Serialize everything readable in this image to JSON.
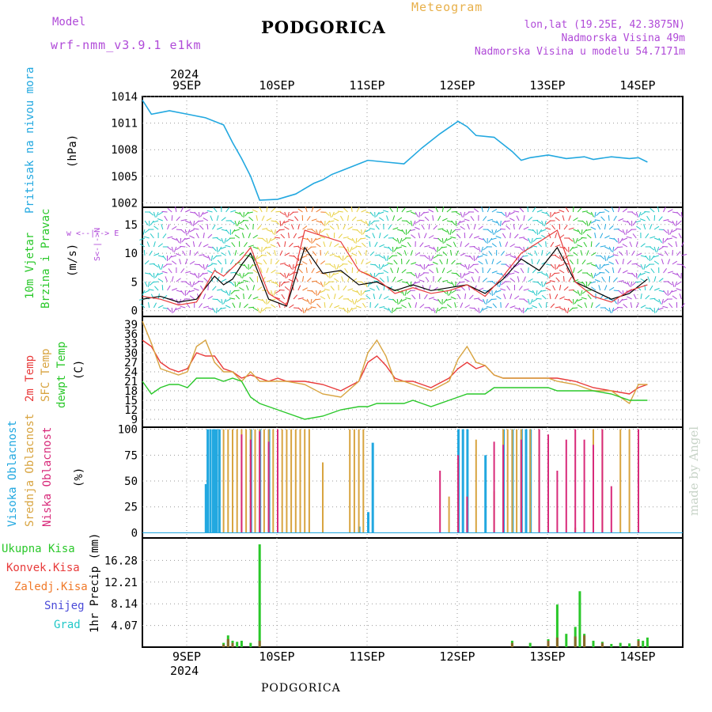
{
  "header": {
    "model_label": "Model",
    "model_name": "wrf-nmm_v3.9.1 e1km",
    "title": "PODGORICA",
    "meteogram": "Meteogram",
    "coords": "lon,lat (19.25E, 42.3875N)",
    "altitude": "Nadmorska Visina 49m",
    "model_altitude": "Nadmorska Visina u modelu 54.7171m"
  },
  "footer": {
    "station": "PODGORICA",
    "credit": "made by Angel"
  },
  "colors": {
    "pressure": "#22a8e0",
    "wind_speed": "#000000",
    "temp2m": "#e83a3a",
    "sfc_temp": "#d8a440",
    "dewpoint": "#2ac82a",
    "high_cloud": "#22a8e0",
    "mid_cloud": "#d8a440",
    "low_cloud": "#d82a7a",
    "total_precip": "#2ac82a",
    "conv_precip": "#e83a3a",
    "frz_precip": "#f07a2a",
    "snow": "#4a4ad8",
    "hail": "#22c8c8"
  },
  "axes": {
    "year": "2024",
    "day_labels": [
      "9SEP",
      "10SEP",
      "11SEP",
      "12SEP",
      "13SEP",
      "14SEP"
    ]
  },
  "panels": {
    "pressure": {
      "label_main": "Pritisak na nivou mora",
      "unit": "(hPa)"
    },
    "wind": {
      "label1": "10m Vjetar",
      "label2": "Brzina i Pravac",
      "unit": "(m/s)",
      "compass": "w <--|--> E",
      "compass_v": "S<-|->N"
    },
    "temp": {
      "label1": "2m Temp",
      "label2": "SFC Temp",
      "label3": "dewpt Temp",
      "unit": "(C)"
    },
    "cloud": {
      "label1": "Visoka Oblacnost",
      "label2": "Srednja Oblacnost",
      "label3": "Niska Oblacnost",
      "unit": "(%)"
    },
    "precip": {
      "legend": [
        "Ukupna Kisa",
        "Konvek.Kisa",
        "Zaledj.Kisa",
        "Snijeg",
        "Grad"
      ],
      "unit": "1hr Precip (mm)"
    }
  },
  "chart_data": [
    {
      "type": "line",
      "panel": "pressure",
      "ylim": [
        1002,
        1014
      ],
      "yticks": [
        1002,
        1005,
        1008,
        1011,
        1014
      ],
      "x_day": [
        0.0,
        0.1,
        0.2,
        0.3,
        0.5,
        0.7,
        0.9,
        1.0,
        1.1,
        1.2,
        1.3,
        1.5,
        1.7,
        1.9,
        2.0,
        2.1,
        2.2,
        2.3,
        2.4,
        2.5,
        2.7,
        2.9,
        3.0,
        3.1,
        3.3,
        3.4,
        3.5,
        3.6,
        3.7,
        3.9,
        4.0,
        4.1,
        4.2,
        4.3,
        4.5,
        4.7,
        4.9,
        5.0,
        5.2,
        5.4,
        5.5,
        5.6
      ],
      "series": [
        {
          "values": [
            1013.6,
            1012.0,
            1012.2,
            1012.4,
            1012.0,
            1011.6,
            1010.8,
            1008.8,
            1007.0,
            1005.0,
            1002.3,
            1002.4,
            1003.0,
            1004.2,
            1004.6,
            1005.2,
            1005.6,
            1006.0,
            1006.4,
            1006.8,
            1006.6,
            1006.4,
            1007.3,
            1008.2,
            1009.8,
            1010.5,
            1011.2,
            1010.6,
            1009.6,
            1009.4,
            1008.6,
            1007.8,
            1006.8,
            1007.1,
            1007.4,
            1007.0,
            1007.2,
            1006.9,
            1007.2,
            1007.0,
            1007.1,
            1006.6
          ]
        }
      ]
    },
    {
      "type": "line",
      "panel": "wind",
      "ylim": [
        0,
        17.5
      ],
      "yticks": [
        0,
        5,
        10,
        15
      ],
      "x_day": [
        0.0,
        0.2,
        0.4,
        0.6,
        0.8,
        0.9,
        1.0,
        1.1,
        1.2,
        1.4,
        1.6,
        1.8,
        2.0,
        2.2,
        2.4,
        2.6,
        2.8,
        3.0,
        3.2,
        3.4,
        3.6,
        3.8,
        4.0,
        4.2,
        4.4,
        4.6,
        4.8,
        5.0,
        5.2,
        5.4,
        5.6
      ],
      "series": [
        {
          "values": [
            2.0,
            2.5,
            1.5,
            2.0,
            6.0,
            4.5,
            5.5,
            8.0,
            10.0,
            2.0,
            0.8,
            11.0,
            6.5,
            7.0,
            4.5,
            5.0,
            3.5,
            4.5,
            3.5,
            4.0,
            4.5,
            3.0,
            5.5,
            9.0,
            7.0,
            11.0,
            5.0,
            3.5,
            2.0,
            3.0,
            5.5
          ]
        },
        {
          "values": [
            2.5,
            2.0,
            1.0,
            1.5,
            7.0,
            6.0,
            7.5,
            9.0,
            11.0,
            3.0,
            1.0,
            14.0,
            13.0,
            12.0,
            7.0,
            5.5,
            3.0,
            4.0,
            3.0,
            3.5,
            4.5,
            2.5,
            6.0,
            10.0,
            12.0,
            14.0,
            5.0,
            2.5,
            1.5,
            3.5,
            4.5
          ]
        }
      ]
    },
    {
      "type": "line",
      "panel": "temp",
      "ylim": [
        7,
        41
      ],
      "yticks": [
        9,
        12,
        15,
        18,
        21,
        24,
        27,
        30,
        33,
        36,
        39
      ],
      "x_day": [
        0.0,
        0.1,
        0.2,
        0.3,
        0.4,
        0.5,
        0.6,
        0.7,
        0.8,
        0.9,
        1.0,
        1.1,
        1.2,
        1.3,
        1.4,
        1.5,
        1.6,
        1.8,
        2.0,
        2.2,
        2.4,
        2.5,
        2.6,
        2.7,
        2.8,
        2.9,
        3.0,
        3.1,
        3.2,
        3.4,
        3.5,
        3.6,
        3.7,
        3.8,
        3.9,
        4.0,
        4.1,
        4.3,
        4.5,
        4.6,
        4.8,
        5.0,
        5.2,
        5.4,
        5.5,
        5.6
      ],
      "series": [
        {
          "values": [
            34,
            32,
            27,
            25,
            24,
            25,
            30,
            29,
            29,
            25,
            24,
            22,
            23,
            22,
            21,
            22,
            21,
            21,
            20,
            18,
            21,
            27,
            29,
            26,
            22,
            21,
            21,
            20,
            19,
            22,
            25,
            27,
            25,
            26,
            23,
            22,
            22,
            22,
            22,
            22,
            21,
            19,
            18,
            17,
            19,
            20
          ]
        },
        {
          "values": [
            40,
            33,
            25,
            24,
            23,
            24,
            32,
            34,
            27,
            24,
            24,
            21,
            24,
            21,
            21,
            21,
            21,
            20,
            17,
            16,
            21,
            30,
            34,
            29,
            21,
            21,
            20,
            19,
            18,
            21,
            28,
            32,
            27,
            26,
            23,
            22,
            22,
            22,
            22,
            21,
            20,
            18,
            18,
            14,
            20,
            20
          ]
        },
        {
          "values": [
            21,
            17,
            19,
            20,
            20,
            19,
            22,
            22,
            22,
            21,
            22,
            21,
            16,
            14,
            13,
            12,
            11,
            9,
            10,
            12,
            13,
            13,
            14,
            14,
            14,
            14,
            15,
            14,
            13,
            15,
            16,
            17,
            17,
            17,
            19,
            19,
            19,
            19,
            19,
            18,
            18,
            18,
            17,
            15,
            15,
            15
          ]
        }
      ]
    },
    {
      "type": "bar",
      "panel": "cloud",
      "ylim": [
        0,
        100
      ],
      "yticks": [
        0,
        25,
        50,
        75,
        100
      ],
      "series": [
        {
          "name": "high",
          "x_day": [
            0.7,
            0.72,
            0.75,
            0.78,
            0.8,
            0.82,
            0.85,
            1.2,
            1.3,
            1.4,
            2.4,
            2.5,
            2.55,
            3.5,
            3.55,
            3.6,
            3.8,
            4.0,
            4.1,
            4.2,
            4.25,
            4.3
          ],
          "values": [
            47,
            100,
            100,
            100,
            100,
            100,
            100,
            100,
            100,
            100,
            6,
            20,
            87,
            100,
            100,
            100,
            75,
            100,
            100,
            100,
            100,
            100
          ]
        },
        {
          "name": "mid",
          "x_day": [
            0.9,
            0.95,
            1.0,
            1.05,
            1.1,
            1.15,
            1.2,
            1.25,
            1.3,
            1.35,
            1.4,
            1.45,
            1.5,
            1.55,
            1.6,
            1.65,
            1.7,
            1.75,
            1.8,
            1.85,
            2.0,
            2.3,
            2.35,
            2.4,
            2.45,
            3.4,
            3.7,
            3.9,
            4.0,
            4.05,
            4.1,
            4.15,
            4.2,
            4.3,
            4.4,
            4.8,
            5.0,
            5.1,
            5.3,
            5.4,
            5.5
          ],
          "values": [
            100,
            100,
            100,
            100,
            100,
            100,
            100,
            100,
            100,
            100,
            100,
            100,
            100,
            100,
            100,
            100,
            100,
            100,
            100,
            100,
            68,
            100,
            100,
            100,
            100,
            35,
            90,
            40,
            100,
            100,
            100,
            100,
            100,
            100,
            100,
            5,
            100,
            100,
            100,
            100,
            100
          ]
        },
        {
          "name": "low",
          "x_day": [
            1.1,
            1.2,
            1.3,
            1.4,
            1.5,
            3.3,
            3.5,
            3.6,
            3.9,
            4.0,
            4.2,
            4.4,
            4.5,
            4.6,
            4.7,
            4.8,
            4.9,
            5.0,
            5.1,
            5.2,
            5.5
          ],
          "values": [
            95,
            90,
            98,
            88,
            100,
            60,
            75,
            35,
            88,
            85,
            90,
            100,
            95,
            60,
            90,
            100,
            90,
            85,
            100,
            45,
            100
          ]
        }
      ]
    },
    {
      "type": "bar",
      "panel": "precip",
      "ylim": [
        0,
        20.35
      ],
      "yticks": [
        4.07,
        8.14,
        12.21,
        16.28
      ],
      "series": [
        {
          "name": "total",
          "x_day": [
            0.9,
            0.95,
            1.0,
            1.05,
            1.1,
            1.2,
            1.3,
            4.1,
            4.3,
            4.5,
            4.6,
            4.7,
            4.8,
            4.85,
            4.9,
            5.0,
            5.1,
            5.2,
            5.3,
            5.4,
            5.5,
            5.55,
            5.6
          ],
          "values": [
            0.8,
            2.2,
            1.2,
            1.0,
            1.2,
            0.8,
            19.3,
            1.2,
            0.8,
            1.5,
            8.0,
            2.5,
            3.8,
            10.5,
            2.5,
            1.2,
            1.0,
            0.6,
            0.8,
            0.7,
            1.5,
            1.2,
            1.8
          ]
        },
        {
          "name": "convective",
          "x_day": [
            0.9,
            0.95,
            1.0,
            1.3,
            4.1,
            4.5,
            4.6,
            4.8,
            4.9,
            5.1,
            5.5
          ],
          "values": [
            0.5,
            1.5,
            0.8,
            1.2,
            0.8,
            1.2,
            1.8,
            2.0,
            2.2,
            0.8,
            1.2
          ]
        }
      ]
    }
  ]
}
